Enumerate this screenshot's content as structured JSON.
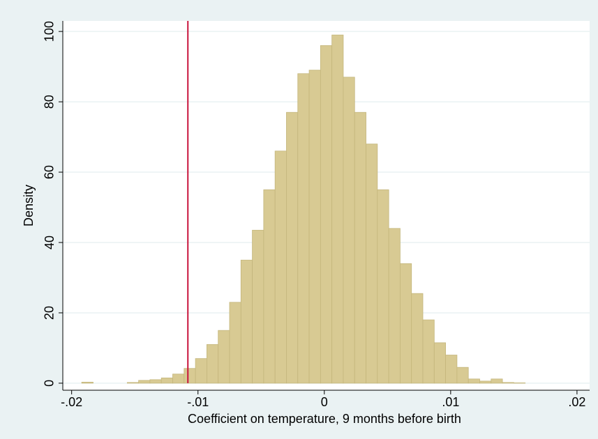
{
  "chart_data": {
    "type": "histogram",
    "xlabel": "Coefficient on temperature, 9 months before birth",
    "ylabel": "Density",
    "bins": [
      -0.0192,
      -0.0183,
      -0.0174,
      -0.0165,
      -0.0156,
      -0.0147,
      -0.0138,
      -0.0129,
      -0.012,
      -0.0111,
      -0.0102,
      -0.0093,
      -0.0084,
      -0.0075,
      -0.0066,
      -0.0057,
      -0.0048,
      -0.0039,
      -0.003,
      -0.0021,
      -0.0012,
      -0.0003,
      0.0006,
      0.0015,
      0.0024,
      0.0033,
      0.0042,
      0.0051,
      0.006,
      0.0069,
      0.0078,
      0.0087,
      0.0096,
      0.0105,
      0.0114,
      0.0123,
      0.0132,
      0.0141,
      0.015,
      0.0159
    ],
    "values": [
      0.3,
      0,
      0,
      0,
      0.2,
      0.8,
      1,
      1.5,
      2.6,
      4.2,
      7,
      11,
      15,
      23,
      35,
      43.5,
      55,
      66,
      77,
      88,
      89,
      96,
      99,
      87,
      77,
      68,
      55,
      44,
      34,
      25.5,
      18,
      11.5,
      8,
      4.5,
      1.2,
      0.6,
      1.2,
      0.2,
      0.1
    ],
    "color": "#d8ca93",
    "edge_color": "#c4b67c",
    "xline": -0.0108,
    "xline_color": "#c8143c",
    "xlim": [
      -0.0207,
      0.021
    ],
    "ylim": [
      -2,
      103
    ],
    "xticks": [
      {
        "value": -0.02,
        "label": "-.02"
      },
      {
        "value": -0.01,
        "label": "-.01"
      },
      0,
      {
        "value": 0.01,
        "label": ".01"
      },
      {
        "value": 0.02,
        "label": ".02"
      }
    ],
    "yticks": [
      0,
      20,
      40,
      60,
      80,
      100
    ],
    "grid": true
  }
}
